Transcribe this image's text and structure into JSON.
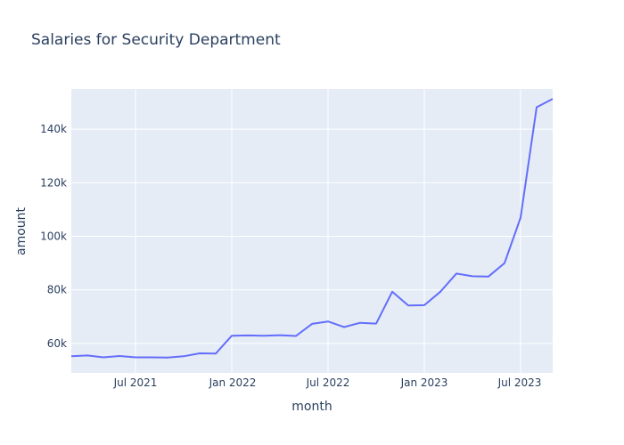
{
  "colors": {
    "plot_background": "#e5ecf6",
    "grid": "#ffffff",
    "line": "#636efa",
    "text": "#2a3f5f"
  },
  "chart_data": {
    "type": "line",
    "title": "Salaries for Security Department",
    "xlabel": "month",
    "ylabel": "amount",
    "x_tick_labels": [
      "Jul 2021",
      "Jan 2022",
      "Jul 2022",
      "Jan 2023",
      "Jul 2023"
    ],
    "y_tick_labels": [
      "60k",
      "80k",
      "100k",
      "120k",
      "140k"
    ],
    "y_tick_values": [
      60000,
      80000,
      100000,
      120000,
      140000
    ],
    "ylim": [
      49000,
      155000
    ],
    "grid": true,
    "series": [
      {
        "x": [
          "2021-03",
          "2021-04",
          "2021-05",
          "2021-06",
          "2021-07",
          "2021-08",
          "2021-09",
          "2021-10",
          "2021-11",
          "2021-12",
          "2022-01",
          "2022-02",
          "2022-03",
          "2022-04",
          "2022-05",
          "2022-06",
          "2022-07",
          "2022-08",
          "2022-09",
          "2022-10",
          "2022-11",
          "2022-12",
          "2023-01",
          "2023-02",
          "2023-03",
          "2023-04",
          "2023-05",
          "2023-06",
          "2023-07",
          "2023-08",
          "2023-09"
        ],
        "y": [
          55200,
          55500,
          54800,
          55300,
          54800,
          54800,
          54700,
          55200,
          56300,
          56200,
          62900,
          63000,
          62900,
          63100,
          62800,
          67300,
          68200,
          66100,
          67700,
          67400,
          79300,
          74200,
          74300,
          79300,
          86100,
          85100,
          85000,
          90000,
          107000,
          148200,
          151300
        ]
      }
    ]
  }
}
